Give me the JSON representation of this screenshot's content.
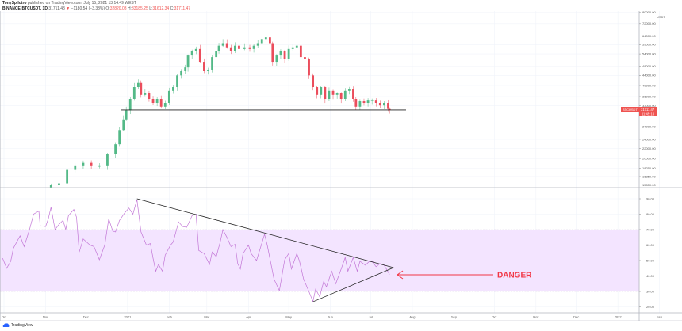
{
  "header": {
    "author": "TonySpilotro",
    "published": "published on TradingView.com, July 15, 2021 13:14:49 WEST",
    "symbol": "BINANCE:BTCUSDT, 1D",
    "last": "31711.48",
    "change": "−1180.54 (−3.38%)",
    "o_label": "O:",
    "o": "32820.03",
    "h_label": "H:",
    "h": "33185.25",
    "l_label": "L:",
    "l": "31612.34",
    "c_label": "C:",
    "c": "31711.47"
  },
  "price_tag": {
    "symbol": "BTCUSDT",
    "price": "31711.47",
    "countdown": "11:45:13",
    "color": "#ef5350"
  },
  "currency": "USDT",
  "annotation": {
    "text": "DANGER",
    "color": "#f23645"
  },
  "footer": {
    "brand": "TradingView"
  },
  "colors": {
    "up": "#53b987",
    "down": "#eb4d5c",
    "rsi": "#c276d6",
    "band": "#f3e4ff"
  },
  "chart_data": [
    {
      "type": "candlestick",
      "scale": "log",
      "price_ticks": [
        "80000.00",
        "72000.00",
        "64000.00",
        "59000.00",
        "54000.00",
        "48000.00",
        "44000.00",
        "40000.00",
        "36000.00",
        "33000.00",
        "27000.00",
        "24000.00",
        "22000.00",
        "20000.00",
        "18250.00",
        "16850.00",
        "15550.00"
      ],
      "support_level": 31700,
      "closes": [
        [
          "2020-11-05",
          15600
        ],
        [
          "2020-11-11",
          15800
        ],
        [
          "2020-11-17",
          17950
        ],
        [
          "2020-11-23",
          18600
        ],
        [
          "2020-11-29",
          19200
        ],
        [
          "2020-12-05",
          18600
        ],
        [
          "2020-12-11",
          18600
        ],
        [
          "2020-12-17",
          20800
        ],
        [
          "2020-12-23",
          22900
        ],
        [
          "2020-12-26",
          26200
        ],
        [
          "2020-12-29",
          29000
        ],
        [
          "2020-12-31",
          31600
        ],
        [
          "2021-01-03",
          35200
        ],
        [
          "2021-01-06",
          39400
        ],
        [
          "2021-01-09",
          41000
        ],
        [
          "2021-01-11",
          36600
        ],
        [
          "2021-01-14",
          37100
        ],
        [
          "2021-01-17",
          35200
        ],
        [
          "2021-01-20",
          33900
        ],
        [
          "2021-01-23",
          35200
        ],
        [
          "2021-01-26",
          32700
        ],
        [
          "2021-01-29",
          33900
        ],
        [
          "2021-02-01",
          38000
        ],
        [
          "2021-02-04",
          39400
        ],
        [
          "2021-02-07",
          44000
        ],
        [
          "2021-02-10",
          45800
        ],
        [
          "2021-02-13",
          47500
        ],
        [
          "2021-02-15",
          53200
        ],
        [
          "2021-02-18",
          55400
        ],
        [
          "2021-02-21",
          56600
        ],
        [
          "2021-02-24",
          50100
        ],
        [
          "2021-02-27",
          45800
        ],
        [
          "2021-03-02",
          46500
        ],
        [
          "2021-03-05",
          52400
        ],
        [
          "2021-03-08",
          55400
        ],
        [
          "2021-03-10",
          58400
        ],
        [
          "2021-03-13",
          59800
        ],
        [
          "2021-03-16",
          57500
        ],
        [
          "2021-03-19",
          55400
        ],
        [
          "2021-03-22",
          58400
        ],
        [
          "2021-03-25",
          56600
        ],
        [
          "2021-03-29",
          57500
        ],
        [
          "2021-04-02",
          56600
        ],
        [
          "2021-04-05",
          58400
        ],
        [
          "2021-04-08",
          59800
        ],
        [
          "2021-04-11",
          62200
        ],
        [
          "2021-04-14",
          63200
        ],
        [
          "2021-04-17",
          59800
        ],
        [
          "2021-04-19",
          50100
        ],
        [
          "2021-04-22",
          53200
        ],
        [
          "2021-04-25",
          55400
        ],
        [
          "2021-04-28",
          51300
        ],
        [
          "2021-05-01",
          56600
        ],
        [
          "2021-05-04",
          57500
        ],
        [
          "2021-05-07",
          58400
        ],
        [
          "2021-05-10",
          52400
        ],
        [
          "2021-05-13",
          51300
        ],
        [
          "2021-05-16",
          44000
        ],
        [
          "2021-05-19",
          39400
        ],
        [
          "2021-05-22",
          36600
        ],
        [
          "2021-05-25",
          39400
        ],
        [
          "2021-05-28",
          35200
        ],
        [
          "2021-05-31",
          38000
        ],
        [
          "2021-06-03",
          36600
        ],
        [
          "2021-06-06",
          37100
        ],
        [
          "2021-06-09",
          35200
        ],
        [
          "2021-06-12",
          38000
        ],
        [
          "2021-06-15",
          38800
        ],
        [
          "2021-06-18",
          35200
        ],
        [
          "2021-06-20",
          32700
        ],
        [
          "2021-06-23",
          34400
        ],
        [
          "2021-06-26",
          33900
        ],
        [
          "2021-06-29",
          34900
        ],
        [
          "2021-07-02",
          34900
        ],
        [
          "2021-07-05",
          33900
        ],
        [
          "2021-07-08",
          33100
        ],
        [
          "2021-07-11",
          33900
        ],
        [
          "2021-07-14",
          32000
        ],
        [
          "2021-07-15",
          31711.47
        ]
      ]
    },
    {
      "type": "line",
      "name": "RSI",
      "ylim": [
        15,
        95
      ],
      "y_ticks": [
        "90.00",
        "80.00",
        "70.00",
        "60.00",
        "50.00",
        "40.00",
        "30.00",
        "20.00"
      ],
      "band": [
        30,
        70
      ],
      "values": [
        [
          "2020-09-30",
          51.5
        ],
        [
          "2020-10-03",
          45
        ],
        [
          "2020-10-06",
          49.5
        ],
        [
          "2020-10-08",
          58
        ],
        [
          "2020-10-13",
          66
        ],
        [
          "2020-10-16",
          59
        ],
        [
          "2020-10-20",
          70
        ],
        [
          "2020-10-23",
          80
        ],
        [
          "2020-10-27",
          82
        ],
        [
          "2020-10-28",
          72.5
        ],
        [
          "2020-11-01",
          72
        ],
        [
          "2020-11-03",
          77
        ],
        [
          "2020-11-05",
          84.5
        ],
        [
          "2020-11-08",
          70
        ],
        [
          "2020-11-11",
          73.5
        ],
        [
          "2020-11-14",
          76
        ],
        [
          "2020-11-16",
          70
        ],
        [
          "2020-11-18",
          79
        ],
        [
          "2020-11-22",
          83
        ],
        [
          "2020-11-24",
          78
        ],
        [
          "2020-11-26",
          55.5
        ],
        [
          "2020-11-29",
          64
        ],
        [
          "2020-12-04",
          60
        ],
        [
          "2020-12-07",
          59
        ],
        [
          "2020-12-11",
          50.5
        ],
        [
          "2020-12-15",
          60
        ],
        [
          "2020-12-18",
          77
        ],
        [
          "2020-12-21",
          69
        ],
        [
          "2020-12-23",
          68.5
        ],
        [
          "2020-12-26",
          76
        ],
        [
          "2020-12-30",
          81
        ],
        [
          "2021-01-02",
          84
        ],
        [
          "2021-01-05",
          80
        ],
        [
          "2021-01-08",
          89.5
        ],
        [
          "2021-01-11",
          68.5
        ],
        [
          "2021-01-15",
          60
        ],
        [
          "2021-01-18",
          61
        ],
        [
          "2021-01-20",
          51.5
        ],
        [
          "2021-01-22",
          43
        ],
        [
          "2021-01-24",
          47.5
        ],
        [
          "2021-01-27",
          43
        ],
        [
          "2021-01-29",
          53.5
        ],
        [
          "2021-02-02",
          60
        ],
        [
          "2021-02-04",
          62
        ],
        [
          "2021-02-08",
          75
        ],
        [
          "2021-02-11",
          72
        ],
        [
          "2021-02-14",
          71.5
        ],
        [
          "2021-02-18",
          79
        ],
        [
          "2021-02-21",
          80
        ],
        [
          "2021-02-23",
          56.5
        ],
        [
          "2021-02-27",
          54.5
        ],
        [
          "2021-03-03",
          47.5
        ],
        [
          "2021-03-05",
          55.5
        ],
        [
          "2021-03-08",
          52.5
        ],
        [
          "2021-03-11",
          62
        ],
        [
          "2021-03-13",
          70
        ],
        [
          "2021-03-16",
          65
        ],
        [
          "2021-03-19",
          59
        ],
        [
          "2021-03-22",
          60.5
        ],
        [
          "2021-03-24",
          48
        ],
        [
          "2021-03-26",
          44.5
        ],
        [
          "2021-03-28",
          54.5
        ],
        [
          "2021-04-01",
          60
        ],
        [
          "2021-04-03",
          54.5
        ],
        [
          "2021-04-07",
          50
        ],
        [
          "2021-04-13",
          67
        ],
        [
          "2021-04-15",
          60
        ],
        [
          "2021-04-20",
          38
        ],
        [
          "2021-04-24",
          30.5
        ],
        [
          "2021-04-28",
          50.5
        ],
        [
          "2021-05-01",
          54.5
        ],
        [
          "2021-05-03",
          44.5
        ],
        [
          "2021-05-07",
          54.5
        ],
        [
          "2021-05-09",
          49.5
        ],
        [
          "2021-05-12",
          38
        ],
        [
          "2021-05-16",
          30
        ],
        [
          "2021-05-19",
          23.5
        ],
        [
          "2021-05-21",
          31.5
        ],
        [
          "2021-05-24",
          26.5
        ],
        [
          "2021-05-27",
          36.5
        ],
        [
          "2021-05-29",
          33
        ],
        [
          "2021-06-02",
          43
        ],
        [
          "2021-06-05",
          35
        ],
        [
          "2021-06-09",
          44.5
        ],
        [
          "2021-06-12",
          52
        ],
        [
          "2021-06-14",
          43
        ],
        [
          "2021-06-18",
          52
        ],
        [
          "2021-06-21",
          43
        ],
        [
          "2021-06-23",
          49.5
        ],
        [
          "2021-06-27",
          47
        ],
        [
          "2021-06-30",
          49.5
        ],
        [
          "2021-07-02",
          49.5
        ],
        [
          "2021-07-05",
          46
        ],
        [
          "2021-07-08",
          48
        ],
        [
          "2021-07-11",
          47
        ],
        [
          "2021-07-15",
          41
        ]
      ],
      "trendlines": [
        [
          [
            "2021-01-08",
            90
          ],
          [
            "2021-07-18",
            45.4
          ]
        ],
        [
          [
            "2021-05-19",
            23.3
          ],
          [
            "2021-07-18",
            45.4
          ]
        ]
      ]
    }
  ],
  "time_axis": {
    "ticks": [
      [
        "2020-10-01",
        "Oct"
      ],
      [
        "2020-11-01",
        "Nov"
      ],
      [
        "2020-12-01",
        "Dec"
      ],
      [
        "2021-01-01",
        "2021"
      ],
      [
        "2021-02-01",
        "Feb"
      ],
      [
        "2021-03-01",
        "Mar"
      ],
      [
        "2021-04-01",
        "Apr"
      ],
      [
        "2021-05-01",
        "May"
      ],
      [
        "2021-06-01",
        "Jun"
      ],
      [
        "2021-07-01",
        "Jul"
      ],
      [
        "2021-08-01",
        "Aug"
      ],
      [
        "2021-09-01",
        "Sep"
      ],
      [
        "2021-10-01",
        "Oct"
      ],
      [
        "2021-11-01",
        "Nov"
      ],
      [
        "2021-12-01",
        "Dec"
      ],
      [
        "2022-01-01",
        "2022"
      ],
      [
        "2022-02-01",
        "Feb"
      ]
    ]
  }
}
